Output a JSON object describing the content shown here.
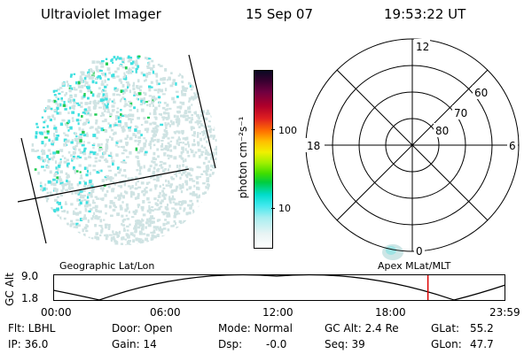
{
  "header": {
    "instrument": "Ultraviolet Imager",
    "date": "15 Sep 07",
    "time": "19:53:22 UT"
  },
  "colorbar": {
    "unit_label": "photon cm⁻²s⁻¹",
    "ticks": [
      "100",
      "10"
    ]
  },
  "polar_plot": {
    "mlt_labels": [
      "12",
      "18",
      "6",
      "0"
    ],
    "lat_labels": [
      "60",
      "70",
      "80"
    ],
    "map_label": "Apex MLat/MLT"
  },
  "geo_image": {
    "map_label": "Geographic Lat/Lon"
  },
  "altitude_plot": {
    "ylabel": "GC Alt",
    "y_ticks": [
      "9.0",
      "1.8"
    ],
    "x_ticks": [
      "00:00",
      "06:00",
      "12:00",
      "18:00",
      "23:59"
    ],
    "marker_time_hours": 19.89
  },
  "status": {
    "flt": "Flt: LBHL",
    "ip": "IP: 36.0",
    "door": "Door: Open",
    "gain": "Gain: 14",
    "mode": "Mode: Normal",
    "dsp": "Dsp:",
    "dsp_value": "-0.0",
    "gc_alt": "GC Alt: 2.4 Re",
    "seq": "Seq: 39",
    "glat": "GLat:",
    "glat_value": "55.2",
    "glon": "GLon:",
    "glon_value": "47.7"
  },
  "colors": {
    "speckle_light": "#cfe3e3",
    "speckle_cyan": "#3fe0e0",
    "speckle_green": "#22cc55",
    "marker_red": "#dd0000"
  }
}
